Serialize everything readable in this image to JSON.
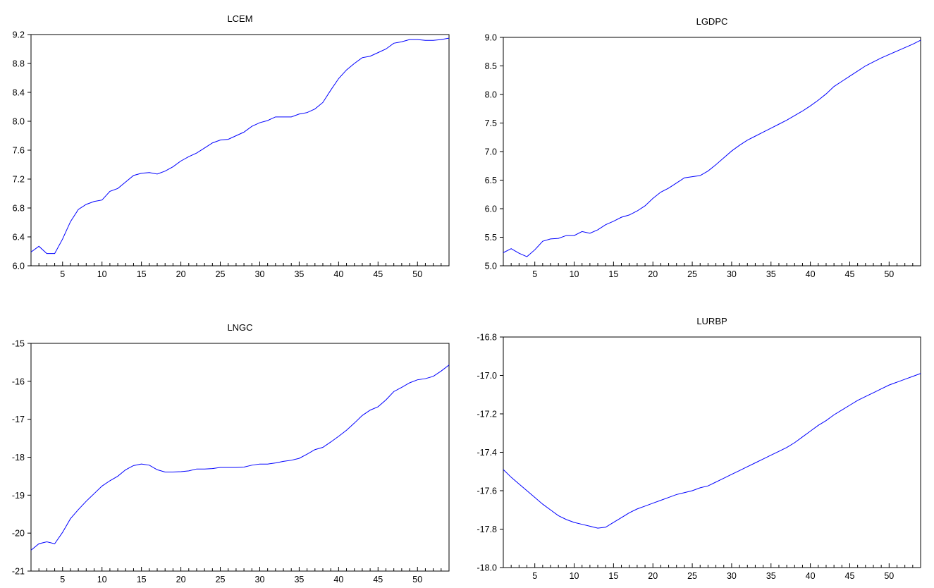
{
  "chart_data": [
    {
      "type": "line",
      "title": "LCEM",
      "xlim": [
        1,
        54
      ],
      "ylim": [
        6.0,
        9.2
      ],
      "xticks": [
        5,
        10,
        15,
        20,
        25,
        30,
        35,
        40,
        45,
        50
      ],
      "xtick_labels": [
        "5",
        "10",
        "15",
        "20",
        "25",
        "30",
        "35",
        "40",
        "45",
        "50"
      ],
      "yticks": [
        6.0,
        6.4,
        6.8,
        7.2,
        7.6,
        8.0,
        8.4,
        8.8,
        9.2
      ],
      "ytick_labels": [
        "6.0",
        "6.4",
        "6.8",
        "7.2",
        "7.6",
        "8.0",
        "8.4",
        "8.8",
        "9.2"
      ],
      "grid": false,
      "line_color": "#0000ff",
      "series": [
        {
          "values": [
            6.19,
            6.27,
            6.17,
            6.17,
            6.37,
            6.61,
            6.78,
            6.85,
            6.89,
            6.91,
            7.03,
            7.07,
            7.16,
            7.25,
            7.28,
            7.29,
            7.27,
            7.31,
            7.37,
            7.45,
            7.51,
            7.56,
            7.63,
            7.7,
            7.74,
            7.75,
            7.8,
            7.85,
            7.93,
            7.98,
            8.01,
            8.06,
            8.06,
            8.06,
            8.1,
            8.12,
            8.17,
            8.26,
            8.43,
            8.59,
            8.71,
            8.8,
            8.88,
            8.9,
            8.95,
            9.0,
            9.08,
            9.1,
            9.13,
            9.13,
            9.12,
            9.12,
            9.13,
            9.15
          ]
        }
      ]
    },
    {
      "type": "line",
      "title": "LGDPC",
      "xlim": [
        1,
        54
      ],
      "ylim": [
        5.0,
        9.0
      ],
      "xticks": [
        5,
        10,
        15,
        20,
        25,
        30,
        35,
        40,
        45,
        50
      ],
      "xtick_labels": [
        "5",
        "10",
        "15",
        "20",
        "25",
        "30",
        "35",
        "40",
        "45",
        "50"
      ],
      "yticks": [
        5.0,
        5.5,
        6.0,
        6.5,
        7.0,
        7.5,
        8.0,
        8.5,
        9.0
      ],
      "ytick_labels": [
        "5.0",
        "5.5",
        "6.0",
        "6.5",
        "7.0",
        "7.5",
        "8.0",
        "8.5",
        "9.0"
      ],
      "grid": false,
      "line_color": "#0000ff",
      "series": [
        {
          "values": [
            5.23,
            5.3,
            5.22,
            5.16,
            5.28,
            5.43,
            5.47,
            5.48,
            5.53,
            5.53,
            5.6,
            5.57,
            5.63,
            5.72,
            5.78,
            5.85,
            5.89,
            5.96,
            6.05,
            6.18,
            6.29,
            6.36,
            6.45,
            6.54,
            6.56,
            6.58,
            6.66,
            6.77,
            6.89,
            7.01,
            7.11,
            7.2,
            7.27,
            7.34,
            7.41,
            7.48,
            7.55,
            7.63,
            7.71,
            7.8,
            7.9,
            8.01,
            8.14,
            8.23,
            8.32,
            8.41,
            8.5,
            8.57,
            8.64,
            8.7,
            8.76,
            8.82,
            8.88,
            8.95
          ]
        }
      ]
    },
    {
      "type": "line",
      "title": "LNGC",
      "xlim": [
        1,
        54
      ],
      "ylim": [
        -21,
        -15
      ],
      "xticks": [
        5,
        10,
        15,
        20,
        25,
        30,
        35,
        40,
        45,
        50
      ],
      "xtick_labels": [
        "5",
        "10",
        "15",
        "20",
        "25",
        "30",
        "35",
        "40",
        "45",
        "50"
      ],
      "yticks": [
        -21,
        -20,
        -19,
        -18,
        -17,
        -16,
        -15
      ],
      "ytick_labels": [
        "-21",
        "-20",
        "-19",
        "-18",
        "-17",
        "-16",
        "-15"
      ],
      "grid": false,
      "line_color": "#0000ff",
      "series": [
        {
          "values": [
            -20.45,
            -20.28,
            -20.23,
            -20.28,
            -19.98,
            -19.62,
            -19.38,
            -19.16,
            -18.96,
            -18.76,
            -18.62,
            -18.5,
            -18.33,
            -18.22,
            -18.18,
            -18.21,
            -18.33,
            -18.39,
            -18.39,
            -18.38,
            -18.36,
            -18.31,
            -18.31,
            -18.3,
            -18.27,
            -18.27,
            -18.27,
            -18.26,
            -18.21,
            -18.18,
            -18.18,
            -18.15,
            -18.11,
            -18.08,
            -18.03,
            -17.92,
            -17.8,
            -17.74,
            -17.6,
            -17.45,
            -17.29,
            -17.1,
            -16.9,
            -16.76,
            -16.67,
            -16.49,
            -16.27,
            -16.16,
            -16.04,
            -15.96,
            -15.93,
            -15.87,
            -15.73,
            -15.57
          ]
        }
      ]
    },
    {
      "type": "line",
      "title": "LURBP",
      "xlim": [
        1,
        54
      ],
      "ylim": [
        -18.0,
        -16.8
      ],
      "xticks": [
        5,
        10,
        15,
        20,
        25,
        30,
        35,
        40,
        45,
        50
      ],
      "xtick_labels": [
        "5",
        "10",
        "15",
        "20",
        "25",
        "30",
        "35",
        "40",
        "45",
        "50"
      ],
      "yticks": [
        -18.0,
        -17.8,
        -17.6,
        -17.4,
        -17.2,
        -17.0,
        -16.8
      ],
      "ytick_labels": [
        "-18.0",
        "-17.8",
        "-17.6",
        "-17.4",
        "-17.2",
        "-17.0",
        "-16.8"
      ],
      "grid": false,
      "line_color": "#0000ff",
      "series": [
        {
          "values": [
            -17.49,
            -17.53,
            -17.565,
            -17.6,
            -17.635,
            -17.67,
            -17.7,
            -17.73,
            -17.75,
            -17.765,
            -17.775,
            -17.785,
            -17.795,
            -17.79,
            -17.765,
            -17.74,
            -17.715,
            -17.695,
            -17.68,
            -17.665,
            -17.65,
            -17.635,
            -17.62,
            -17.61,
            -17.6,
            -17.585,
            -17.575,
            -17.555,
            -17.535,
            -17.515,
            -17.495,
            -17.475,
            -17.455,
            -17.435,
            -17.415,
            -17.395,
            -17.375,
            -17.35,
            -17.32,
            -17.29,
            -17.26,
            -17.235,
            -17.205,
            -17.18,
            -17.155,
            -17.13,
            -17.11,
            -17.09,
            -17.07,
            -17.05,
            -17.035,
            -17.02,
            -17.005,
            -16.99
          ]
        }
      ]
    }
  ]
}
